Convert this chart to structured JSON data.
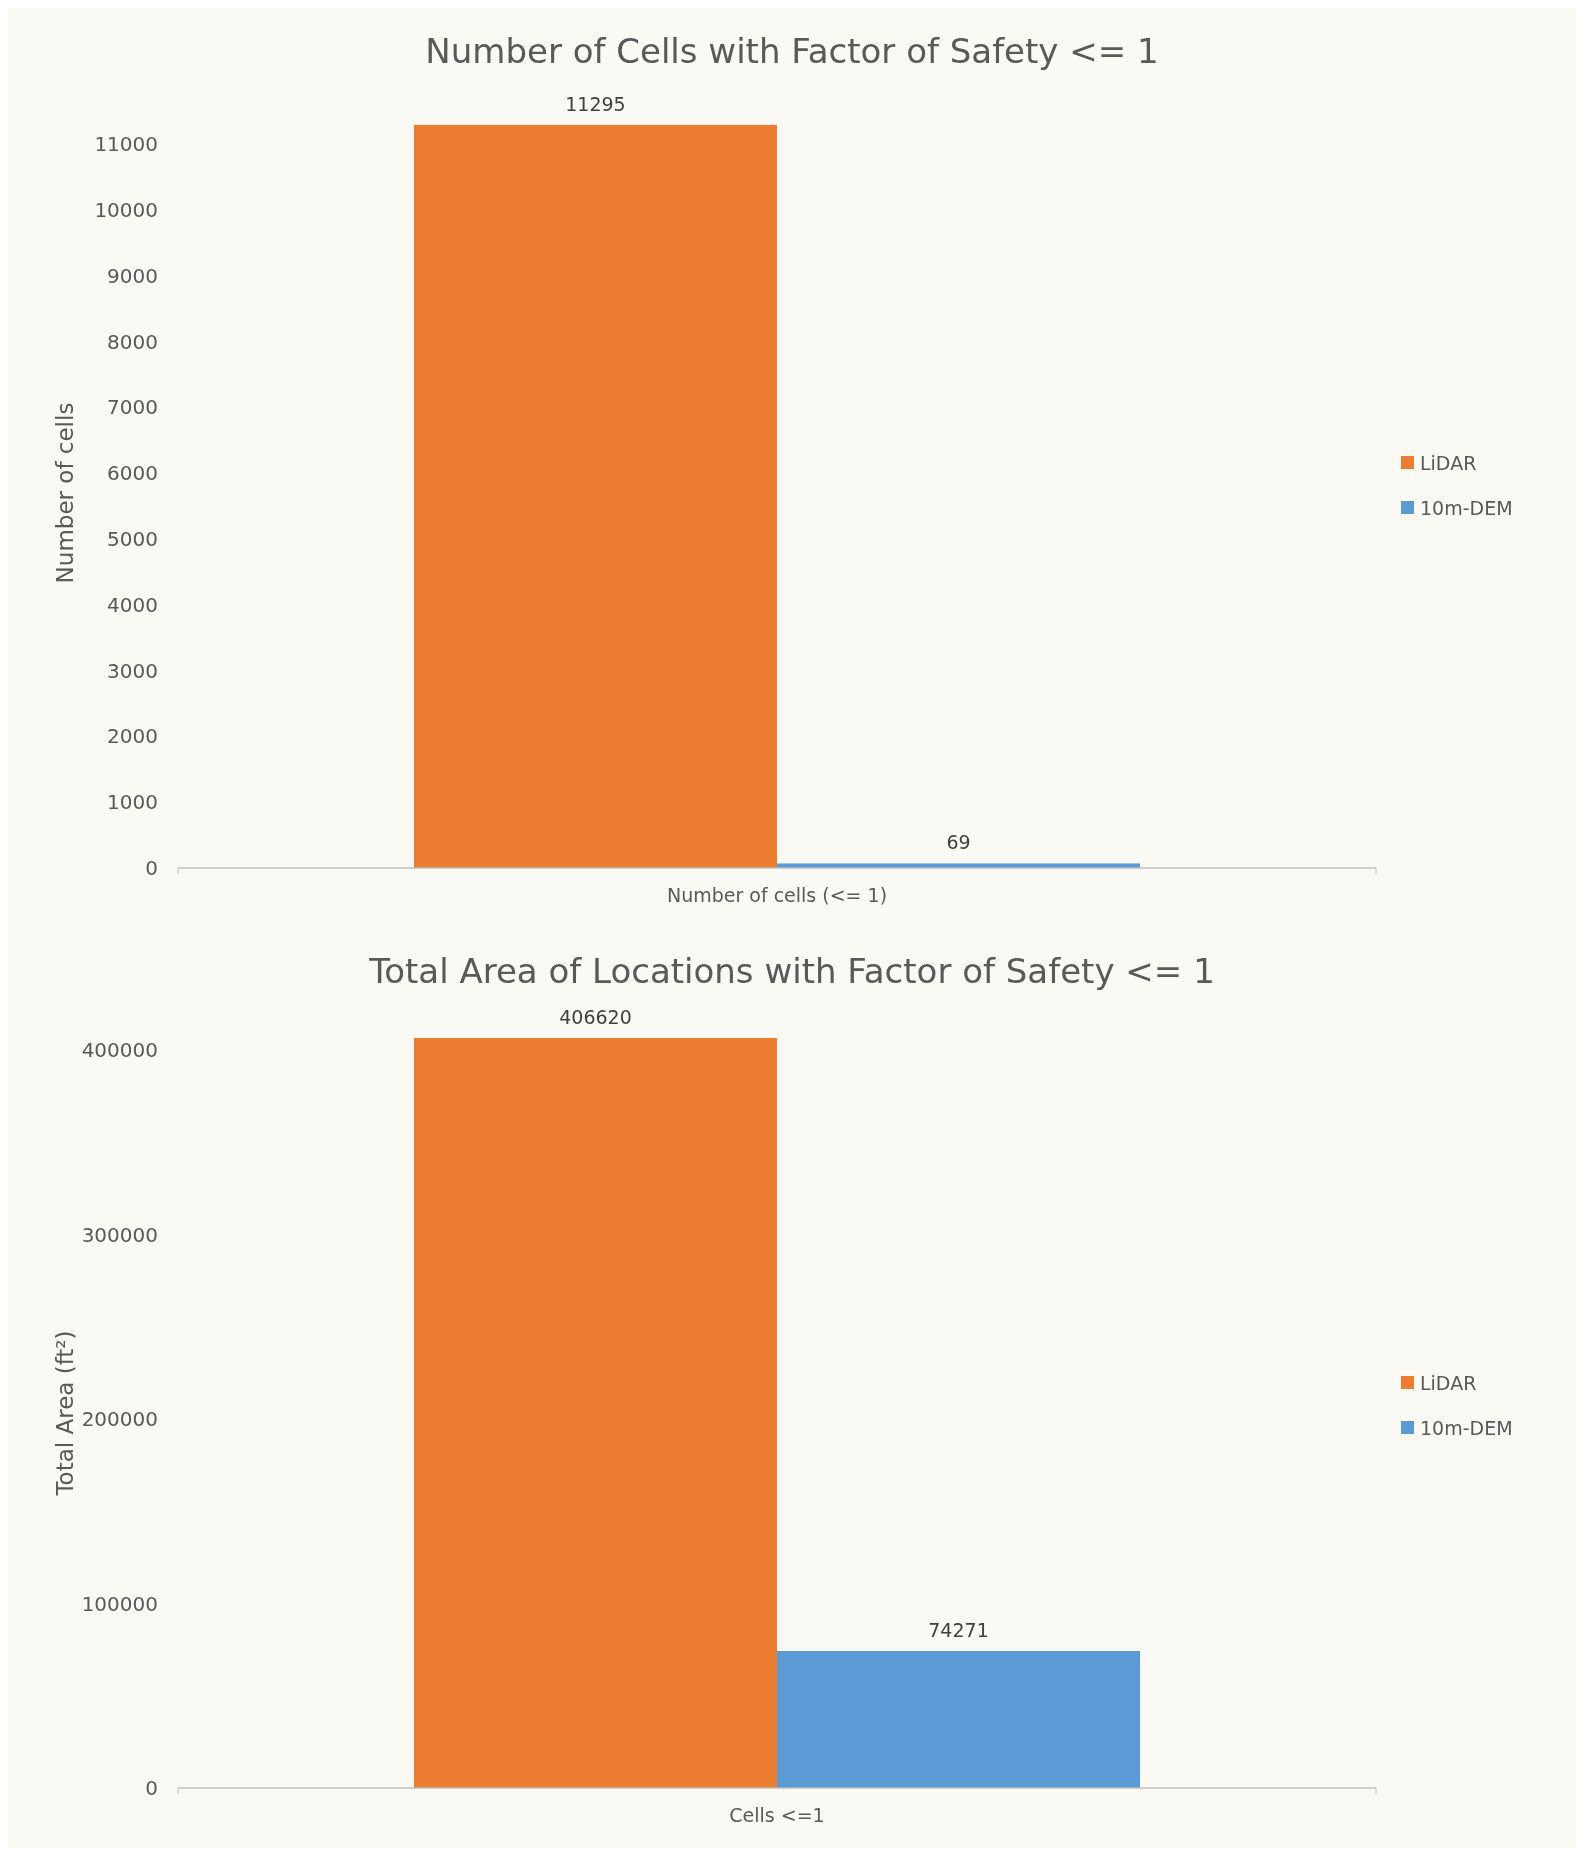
{
  "chart_data": [
    {
      "type": "bar",
      "title": "Number of Cells with Factor of Safety <= 1",
      "ylabel": "Number of cells",
      "categories": [
        "Number of cells (<= 1)"
      ],
      "series": [
        {
          "name": "LiDAR",
          "color": "#ed7d31",
          "values": [
            11295
          ]
        },
        {
          "name": "10m-DEM",
          "color": "#5b9bd5",
          "values": [
            69
          ]
        }
      ],
      "ylim": [
        0,
        11400
      ],
      "yticks": [
        0,
        1000,
        2000,
        3000,
        4000,
        5000,
        6000,
        7000,
        8000,
        9000,
        10000,
        11000
      ],
      "data_labels": true,
      "legend": "right",
      "grid": false
    },
    {
      "type": "bar",
      "title": "Total Area of Locations with Factor of Safety <= 1",
      "ylabel": "Total Area (ft²)",
      "categories": [
        "Cells <=1"
      ],
      "series": [
        {
          "name": "LiDAR",
          "color": "#ed7d31",
          "values": [
            406620
          ]
        },
        {
          "name": "10m-DEM",
          "color": "#5b9bd5",
          "values": [
            74271
          ]
        }
      ],
      "ylim": [
        0,
        406620
      ],
      "yticks": [
        0,
        100000,
        200000,
        300000,
        400000
      ],
      "data_labels": true,
      "legend": "right",
      "grid": false
    }
  ]
}
